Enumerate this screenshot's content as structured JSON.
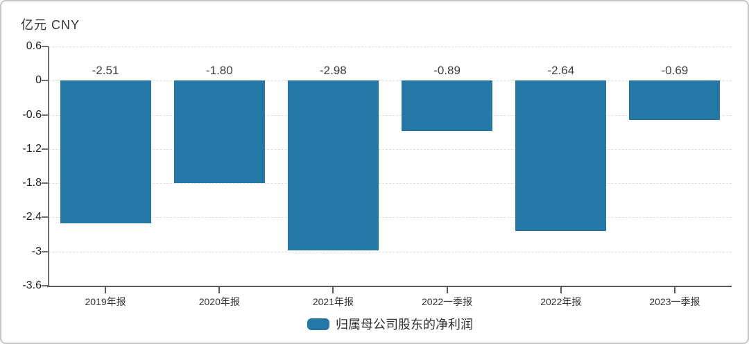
{
  "chart": {
    "unit_label": "亿元 CNY"
  },
  "chart_data": {
    "type": "bar",
    "title": "",
    "ylabel": "亿元 CNY",
    "xlabel": "",
    "categories": [
      "2019年报",
      "2020年报",
      "2021年报",
      "2022一季报",
      "2022年报",
      "2023一季报"
    ],
    "series": [
      {
        "name": "归属母公司股东的净利润",
        "values": [
          -2.51,
          -1.8,
          -2.98,
          -0.89,
          -2.64,
          -0.69
        ],
        "data_labels": [
          "-2.51",
          "-1.80",
          "-2.98",
          "-0.89",
          "-2.64",
          "-0.69"
        ],
        "color": "#2577A6"
      }
    ],
    "y_tick_labels": [
      "0.6",
      "0",
      "-0.6",
      "-1.2",
      "-1.8",
      "-2.4",
      "-3",
      "-3.6"
    ],
    "ylim": [
      -3.6,
      0.6
    ],
    "grid": "horizontal-dashed",
    "legend_position": "bottom"
  },
  "colors": {
    "bar": "#2577A6",
    "grid": "#e0e0e0",
    "y_axis": "#6e6e6e",
    "x_axis": "#5a5a5a",
    "text": "#333333",
    "value_label_text": "#3d3d3d",
    "card_border": "#c6c6c6",
    "background": "#ffffff"
  }
}
